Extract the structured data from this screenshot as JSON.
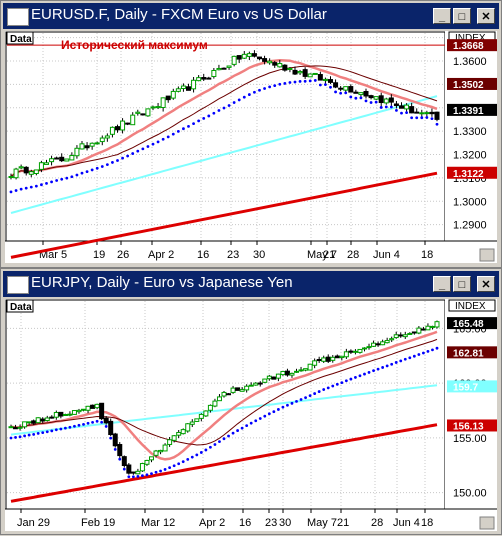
{
  "panels": [
    {
      "title": "EURUSD.F, Daily - FXCM Euro vs US Dollar",
      "data_tab": "Data",
      "index_label": "INDEX",
      "annotation": "Исторический максимум",
      "y_ticks": [
        "1.3700",
        "1.3600",
        "1.3500",
        "1.3400",
        "1.3300",
        "1.3200",
        "1.3100",
        "1.3000",
        "1.2900"
      ],
      "price_tags": [
        "1.3668",
        "1.3502",
        "1.3391",
        "1.3122"
      ],
      "x_labels": [
        "Mar 5",
        "19",
        "26",
        "Apr 2",
        "16",
        "23",
        "30",
        "May 7",
        "21",
        "28",
        "Jun 4",
        "18"
      ],
      "window_buttons": {
        "minimize": "_",
        "maximize": "□",
        "close": "✕"
      }
    },
    {
      "title": "EURJPY, Daily - Euro vs Japanese Yen",
      "data_tab": "Data",
      "index_label": "INDEX",
      "y_ticks": [
        "165.00",
        "160.00",
        "155.00",
        "150.00"
      ],
      "price_tags": [
        "165.48",
        "162.81",
        "159.7",
        "156.13"
      ],
      "x_labels": [
        "Jan 29",
        "Feb 19",
        "Mar 12",
        "Apr 2",
        "16",
        "23",
        "30",
        "May 7",
        "21",
        "28",
        "Jun 4",
        "18"
      ],
      "window_buttons": {
        "minimize": "_",
        "maximize": "□",
        "close": "✕"
      }
    }
  ],
  "chart_data": [
    {
      "type": "candlestick",
      "title": "EURUSD.F, Daily - FXCM Euro vs US Dollar",
      "ylim": [
        1.283,
        1.372
      ],
      "resistance_level": 1.3668,
      "last_close": 1.3391,
      "indicator_values": {
        "ma_a": 1.3502,
        "ma_b": 1.3502,
        "ma_c": 1.3391,
        "ma_d": 1.3122
      },
      "colors": {
        "up": "#00a000",
        "down": "#000000",
        "ma_a": "#f08080",
        "ma_b": "#6b0000",
        "ma_c": "#80ffff",
        "ma_d": "#dd0000",
        "sar": "#0000ff",
        "level": "#cc0000"
      }
    },
    {
      "type": "candlestick",
      "title": "EURJPY, Daily - Euro vs Japanese Yen",
      "ylim": [
        148.5,
        167.5
      ],
      "last_close": 165.48,
      "indicator_values": {
        "ma_a": 162.81,
        "ma_b": 162.81,
        "ma_c": 159.7,
        "ma_d": 156.13
      },
      "colors": {
        "up": "#00a000",
        "down": "#000000",
        "ma_a": "#f08080",
        "ma_b": "#6b0000",
        "ma_c": "#80ffff",
        "ma_d": "#dd0000",
        "sar": "#0000ff"
      }
    }
  ]
}
